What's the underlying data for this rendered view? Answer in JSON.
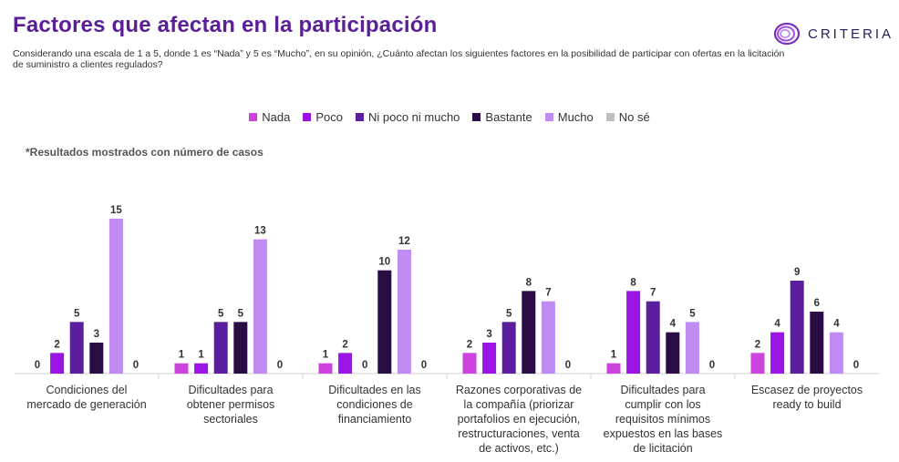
{
  "header": {
    "title": "Factores que afectan en la participación",
    "subtitle": "Considerando una escala de 1 a 5, donde 1 es “Nada” y 5 es “Mucho”, en su opinión, ¿Cuánto afectan los siguientes factores en la posibilidad de participar con ofertas en la licitación de suministro a clientes regulados?"
  },
  "logo": {
    "text": "CRITERIA",
    "icon": "concentric-rings-icon",
    "color": "#7b2fbe"
  },
  "note": "*Resultados mostrados con número de casos",
  "chart_data": {
    "type": "bar",
    "categories": [
      [
        "Condiciones del",
        "mercado de generación"
      ],
      [
        "Dificultades para",
        "obtener permisos",
        "sectoriales"
      ],
      [
        "Dificultades en las",
        "condiciones de",
        "financiamiento"
      ],
      [
        "Razones corporativas de",
        "la compañía (priorizar",
        "portafolios en ejecución,",
        "restructuraciones, venta",
        "de activos, etc.)"
      ],
      [
        "Dificultades para",
        "cumplir con los",
        "requisitos mínimos",
        "expuestos en las bases",
        "de licitación"
      ],
      [
        "Escasez de proyectos",
        "ready to build"
      ]
    ],
    "series": [
      {
        "name": "Nada",
        "color": "#cc44dd",
        "values": [
          0,
          1,
          1,
          2,
          1,
          2
        ]
      },
      {
        "name": "Poco",
        "color": "#9a14e6",
        "values": [
          2,
          1,
          2,
          3,
          8,
          4
        ]
      },
      {
        "name": "Ni poco ni mucho",
        "color": "#5a1e9e",
        "values": [
          5,
          5,
          0,
          5,
          7,
          9
        ]
      },
      {
        "name": "Bastante",
        "color": "#2a0d45",
        "values": [
          3,
          5,
          10,
          8,
          4,
          6
        ]
      },
      {
        "name": "Mucho",
        "color": "#c08bf2",
        "values": [
          15,
          13,
          12,
          7,
          5,
          4
        ]
      },
      {
        "name": "No sé",
        "color": "#bfbfbf",
        "values": [
          0,
          0,
          0,
          0,
          0,
          0
        ]
      }
    ],
    "ylim": [
      0,
      15
    ],
    "legend": "top-center",
    "grid": false
  }
}
